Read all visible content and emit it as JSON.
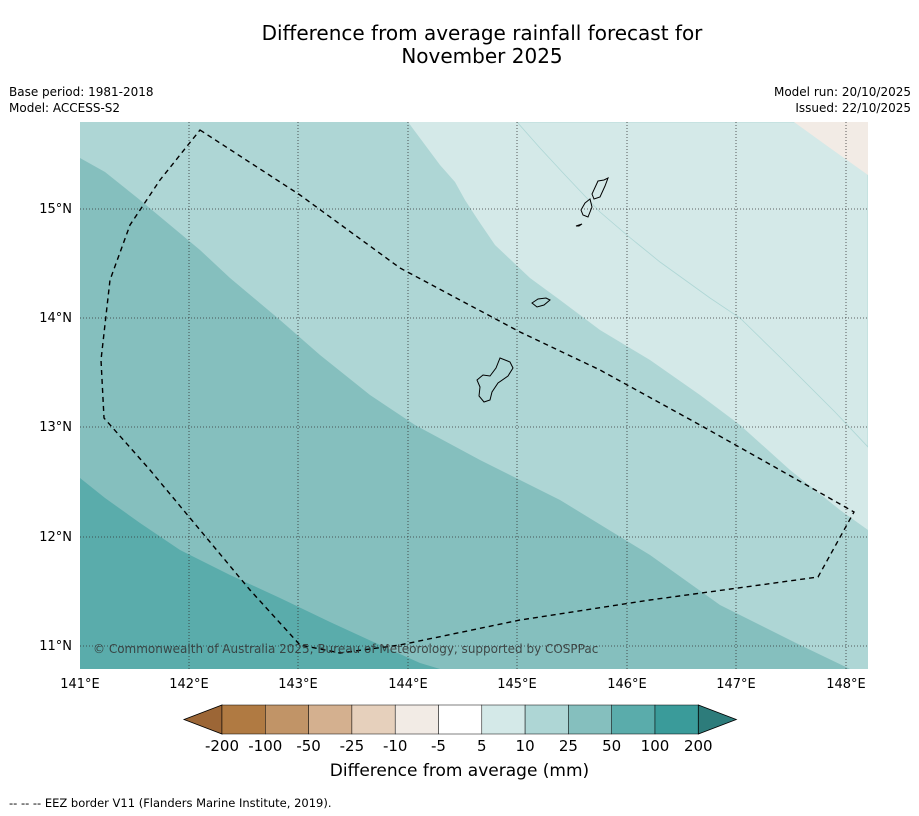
{
  "title_line1": "Difference from average rainfall forecast for",
  "title_line2": "November 2025",
  "base_period": "Base period: 1981-2018",
  "model": "Model: ACCESS-S2",
  "model_run": "Model run: 20/10/2025",
  "issued": "Issued: 22/10/2025",
  "copyright": "© Commonwealth of Australia 2025, Bureau of Meteorology, supported by COSPPac",
  "lat_labels": [
    "15°N",
    "14°N",
    "13°N",
    "12°N",
    "11°N"
  ],
  "lon_labels": [
    "141°E",
    "142°E",
    "143°E",
    "144°E",
    "145°E",
    "146°E",
    "147°E",
    "148°E"
  ],
  "colorbar": {
    "ticks": [
      "-200",
      "-100",
      "-50",
      "-25",
      "-10",
      "-5",
      "5",
      "10",
      "25",
      "50",
      "100",
      "200"
    ],
    "colors": [
      "#9c6636",
      "#b07a42",
      "#c19467",
      "#d4b08f",
      "#e6d0bc",
      "#f2ebe5",
      "#ffffff",
      "#d4e9e8",
      "#aed6d5",
      "#85bfbe",
      "#5aacab",
      "#3a9b9a",
      "#2d7c7b"
    ],
    "label": "Difference from average (mm)"
  },
  "footnote": "--  --  -- EEZ border V11 (Flanders Marine Institute, 2019).",
  "chart_data": {
    "type": "contour-map",
    "lon_range": [
      141.0,
      148.2
    ],
    "lat_range": [
      10.8,
      15.8
    ],
    "variable": "Difference from average rainfall (mm)",
    "bands_top_right_to_bottom_left": [
      "-10 to -5",
      "5 to 10",
      "10 to 25",
      "25 to 50",
      "50 to 100"
    ]
  }
}
